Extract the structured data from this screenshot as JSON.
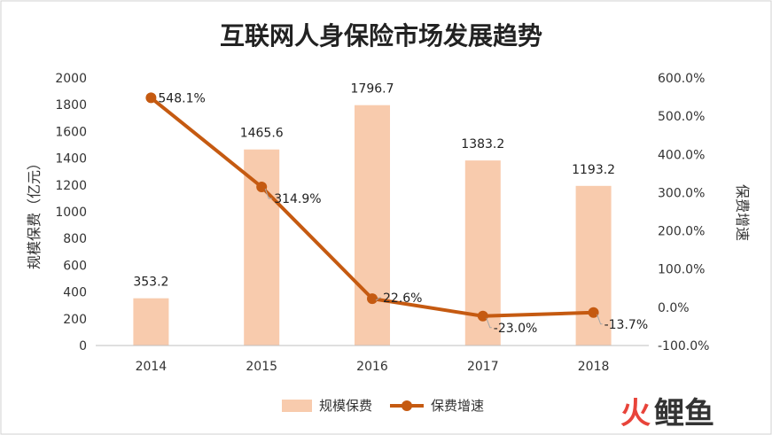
{
  "chart_data": {
    "type": "bar",
    "title": "互联网人身保险市场发展趋势",
    "categories": [
      "2014",
      "2015",
      "2016",
      "2017",
      "2018"
    ],
    "series": [
      {
        "name": "规模保费",
        "type": "bar",
        "axis": "left",
        "values": [
          353.2,
          1465.6,
          1796.7,
          1383.2,
          1193.2
        ],
        "labels": [
          "353.2",
          "1465.6",
          "1796.7",
          "1383.2",
          "1193.2"
        ],
        "color": "#f8cbad"
      },
      {
        "name": "保费增速",
        "type": "line",
        "axis": "right",
        "values": [
          548.1,
          314.9,
          22.6,
          -23.0,
          -13.7
        ],
        "labels": [
          "548.1%",
          "314.9%",
          "22.6%",
          "-23.0%",
          "-13.7%"
        ],
        "color": "#c55a11"
      }
    ],
    "y_left": {
      "label": "规模保费（亿元）",
      "min": 0,
      "max": 2000,
      "ticks": [
        "0",
        "200",
        "400",
        "600",
        "800",
        "1000",
        "1200",
        "1400",
        "1600",
        "1800",
        "2000"
      ]
    },
    "y_right": {
      "label": "保费增速",
      "min": -100,
      "max": 600,
      "ticks": [
        "-100.0%",
        "0.0%",
        "100.0%",
        "200.0%",
        "300.0%",
        "400.0%",
        "500.0%",
        "600.0%"
      ]
    },
    "grid": false,
    "legend": "bottom"
  },
  "watermark": {
    "text_part1": "火",
    "text_part2": "鲤鱼",
    "color1": "#e8443a",
    "color2": "#333333"
  }
}
